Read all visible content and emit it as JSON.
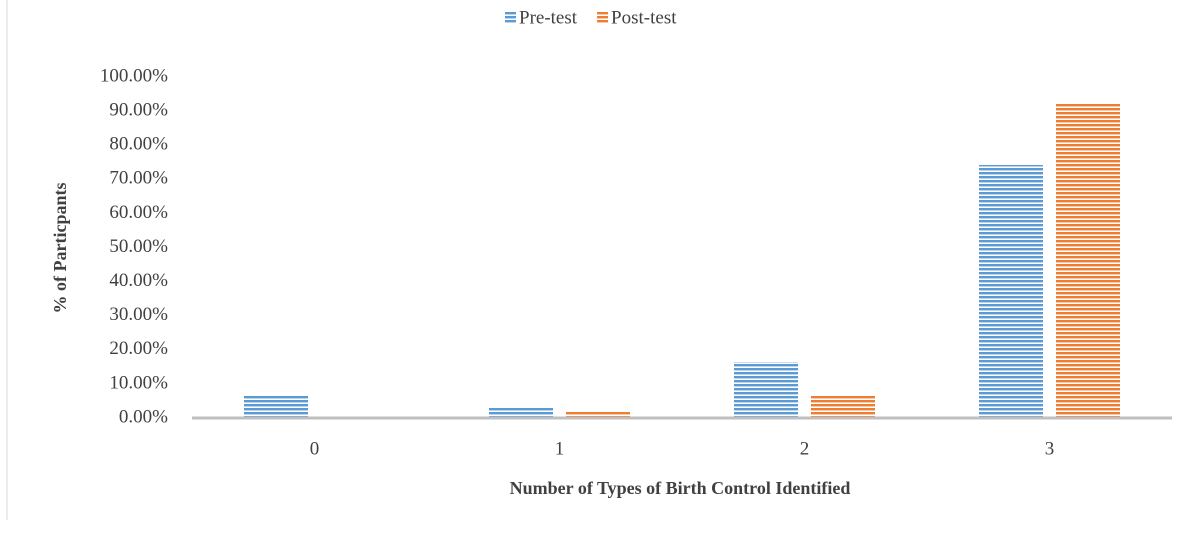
{
  "chart_data": {
    "type": "bar",
    "x_label": "Number of Types of Birth Control Identified",
    "y_label": "% of Particpants",
    "categories": [
      "0",
      "1",
      "2",
      "3"
    ],
    "series": [
      {
        "name": "Pre-test",
        "color": "#5b9bd5",
        "values": [
          6.5,
          3.2,
          16.4,
          74.2
        ]
      },
      {
        "name": "Post-test",
        "color": "#ed7d31",
        "values": [
          0,
          1.8,
          6.5,
          92.4
        ]
      }
    ],
    "ylim": [
      0,
      100
    ],
    "yticks": [
      {
        "value": 0,
        "label": "0.00%"
      },
      {
        "value": 10,
        "label": "10.00%"
      },
      {
        "value": 20,
        "label": "20.00%"
      },
      {
        "value": 30,
        "label": "30.00%"
      },
      {
        "value": 40,
        "label": "40.00%"
      },
      {
        "value": 50,
        "label": "50.00%"
      },
      {
        "value": 60,
        "label": "60.00%"
      },
      {
        "value": 70,
        "label": "70.00%"
      },
      {
        "value": 80,
        "label": "80.00%"
      },
      {
        "value": 90,
        "label": "90.00%"
      },
      {
        "value": 100,
        "label": "100.00%"
      }
    ],
    "legend": "top"
  }
}
